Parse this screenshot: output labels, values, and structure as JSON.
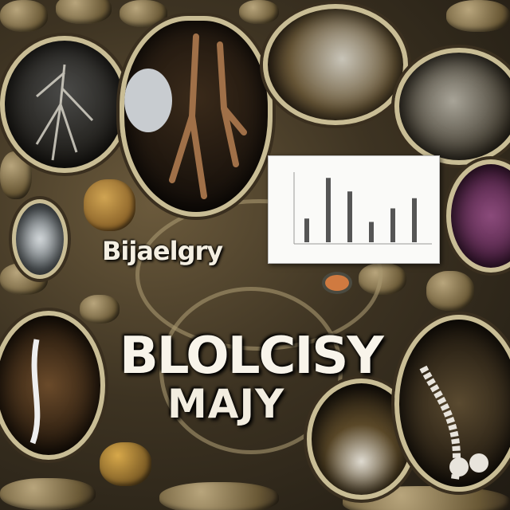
{
  "image": {
    "title_small": "Bijaelgry",
    "title_big": "BLOLCISY",
    "subtitle": "MAJY",
    "colors": {
      "membrane": "#c9bd95",
      "dark_tissue": "#2a2418",
      "purple_cell": "#7a3a6a",
      "chart_bar": "#555555",
      "text": "#f4efe2"
    }
  },
  "chart_data": {
    "type": "bar",
    "categories": [
      "",
      "",
      "",
      "",
      "",
      ""
    ],
    "values": [
      0.35,
      0.95,
      0.75,
      0.3,
      0.5,
      0.65
    ],
    "title": "",
    "xlabel": "",
    "ylabel": "",
    "ylim": [
      0,
      1
    ]
  }
}
